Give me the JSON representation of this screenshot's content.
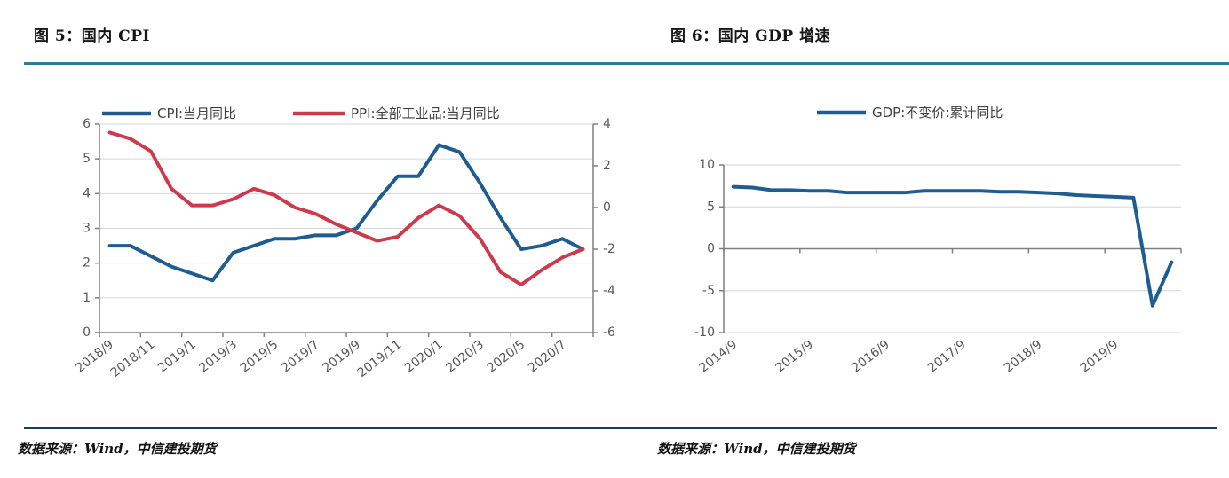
{
  "page": {
    "source_left": "数据来源：Wind，中信建投期货",
    "source_right": "数据来源：Wind，中信建投期货"
  },
  "colors": {
    "line_blue": "#1f5c8f",
    "line_red": "#cd3a4e",
    "title_rule": "#2c7c99",
    "bottom_rule": "#1f3864",
    "grid": "#d6d6d6",
    "axis": "#7f7f7f",
    "tick_label": "#595959",
    "legend_text": "#404040"
  },
  "chart_data": [
    {
      "type": "line",
      "title": "图 5：国内 CPI",
      "legend_position": "top",
      "grid": true,
      "categories": [
        "2018/9",
        "2018/10",
        "2018/11",
        "2018/12",
        "2019/1",
        "2019/2",
        "2019/3",
        "2019/4",
        "2019/5",
        "2019/6",
        "2019/7",
        "2019/8",
        "2019/9",
        "2019/10",
        "2019/11",
        "2019/12",
        "2020/1",
        "2020/2",
        "2020/3",
        "2020/4",
        "2020/5",
        "2020/6",
        "2020/7",
        "2020/8"
      ],
      "x_tick_labels": [
        "2018/9",
        "2018/11",
        "2019/1",
        "2019/3",
        "2019/5",
        "2019/7",
        "2019/9",
        "2019/11",
        "2020/1",
        "2020/3",
        "2020/5",
        "2020/7"
      ],
      "left_axis": {
        "min": 0,
        "max": 6,
        "ticks": [
          6,
          5,
          4,
          3,
          2,
          1,
          0
        ]
      },
      "right_axis": {
        "min": -6,
        "max": 4,
        "ticks": [
          4,
          2,
          0,
          -2,
          -4,
          -6
        ]
      },
      "series": [
        {
          "name": "CPI:当月同比",
          "axis": "left",
          "color_key": "line_blue",
          "values": [
            2.5,
            2.5,
            2.2,
            1.9,
            1.7,
            1.5,
            2.3,
            2.5,
            2.7,
            2.7,
            2.8,
            2.8,
            3.0,
            3.8,
            4.5,
            4.5,
            5.4,
            5.2,
            4.3,
            3.3,
            2.4,
            2.5,
            2.7,
            2.4
          ]
        },
        {
          "name": "PPI:全部工业品:当月同比",
          "axis": "right",
          "color_key": "line_red",
          "values": [
            3.6,
            3.3,
            2.7,
            0.9,
            0.1,
            0.1,
            0.4,
            0.9,
            0.6,
            0.0,
            -0.3,
            -0.8,
            -1.2,
            -1.6,
            -1.4,
            -0.5,
            0.1,
            -0.4,
            -1.5,
            -3.1,
            -3.7,
            -3.0,
            -2.4,
            -2.0
          ]
        }
      ]
    },
    {
      "type": "line",
      "title": "图 6：国内 GDP 增速",
      "legend_position": "top",
      "grid": true,
      "categories": [
        "2014/9",
        "2014/12",
        "2015/3",
        "2015/6",
        "2015/9",
        "2015/12",
        "2016/3",
        "2016/6",
        "2016/9",
        "2016/12",
        "2017/3",
        "2017/6",
        "2017/9",
        "2017/12",
        "2018/3",
        "2018/6",
        "2018/9",
        "2018/12",
        "2019/3",
        "2019/6",
        "2019/9",
        "2019/12",
        "2020/3",
        "2020/6"
      ],
      "x_tick_labels": [
        "2014/9",
        "2015/9",
        "2016/9",
        "2017/9",
        "2018/9",
        "2019/9"
      ],
      "left_axis": {
        "min": -10,
        "max": 10,
        "ticks": [
          10,
          5,
          0,
          -5,
          -10
        ]
      },
      "series": [
        {
          "name": "GDP:不变价:累计同比",
          "axis": "left",
          "color_key": "line_blue",
          "values": [
            7.4,
            7.3,
            7.0,
            7.0,
            6.9,
            6.9,
            6.7,
            6.7,
            6.7,
            6.7,
            6.9,
            6.9,
            6.9,
            6.9,
            6.8,
            6.8,
            6.7,
            6.6,
            6.4,
            6.3,
            6.2,
            6.1,
            -6.8,
            -1.6
          ]
        }
      ]
    }
  ]
}
